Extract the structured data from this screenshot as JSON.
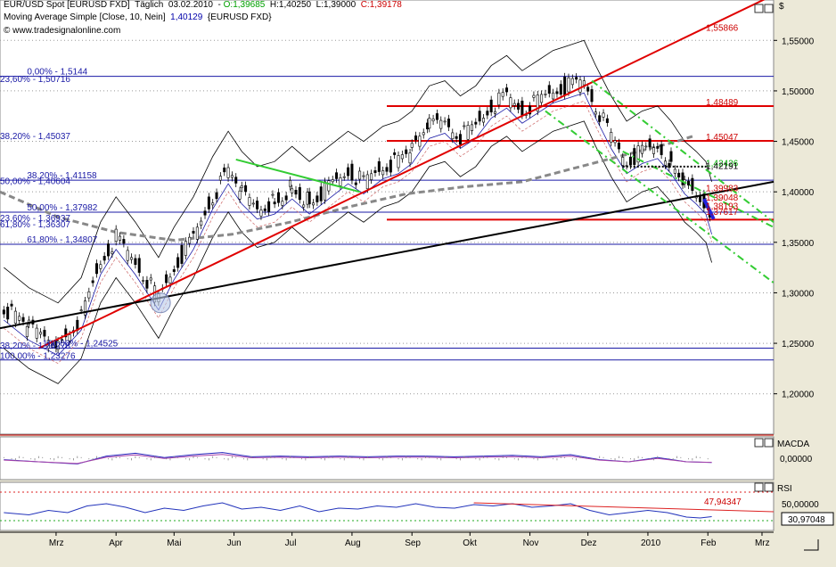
{
  "header": {
    "line1": {
      "instrument": "EUR/USD Spot [EURUSD FXD]",
      "period": "Täglich",
      "date": "03.02.2010",
      "open": "O:1,39685",
      "high": "H:1,40250",
      "low": "L:1,39000",
      "close": "C:1,39178"
    },
    "line2": {
      "indicator": "Moving Average Simple [Close, 10, Nein]",
      "value": "1,40129",
      "symbol": "{EURUSD FXD}"
    },
    "line3": "© www.tradesignalonline.com"
  },
  "chart_data": [
    {
      "type": "candlestick",
      "title": "EUR/USD Spot [EURUSD FXD]",
      "y_axis_label": "$",
      "ylim": [
        1.16,
        1.59
      ],
      "y_ticks": [
        "1,55000",
        "1,50000",
        "1,45000",
        "1,40000",
        "1,35000",
        "1,30000",
        "1,25000",
        "1,20000"
      ],
      "y_tick_values": [
        1.55,
        1.5,
        1.45,
        1.4,
        1.35,
        1.3,
        1.25,
        1.2
      ],
      "x_ticks": [
        "Mrz",
        "Apr",
        "Mai",
        "Jun",
        "Jul",
        "Aug",
        "Sep",
        "Okt",
        "Nov",
        "Dez",
        "2010",
        "Feb",
        "Mrz"
      ],
      "x_tick_days": [
        59,
        90,
        120,
        151,
        181,
        212,
        243,
        273,
        304,
        334,
        365,
        396,
        424
      ],
      "x_range_days": [
        30,
        430
      ],
      "price_path": [
        [
          32,
          1.285
        ],
        [
          45,
          1.265
        ],
        [
          60,
          1.25
        ],
        [
          72,
          1.275
        ],
        [
          82,
          1.33
        ],
        [
          90,
          1.355
        ],
        [
          100,
          1.33
        ],
        [
          112,
          1.295
        ],
        [
          120,
          1.325
        ],
        [
          130,
          1.355
        ],
        [
          140,
          1.395
        ],
        [
          148,
          1.42
        ],
        [
          155,
          1.4
        ],
        [
          163,
          1.385
        ],
        [
          172,
          1.39
        ],
        [
          181,
          1.405
        ],
        [
          190,
          1.39
        ],
        [
          200,
          1.405
        ],
        [
          210,
          1.42
        ],
        [
          218,
          1.41
        ],
        [
          228,
          1.425
        ],
        [
          236,
          1.43
        ],
        [
          243,
          1.44
        ],
        [
          252,
          1.465
        ],
        [
          260,
          1.47
        ],
        [
          268,
          1.455
        ],
        [
          276,
          1.465
        ],
        [
          284,
          1.485
        ],
        [
          292,
          1.495
        ],
        [
          300,
          1.48
        ],
        [
          308,
          1.49
        ],
        [
          316,
          1.5
        ],
        [
          324,
          1.505
        ],
        [
          332,
          1.51
        ],
        [
          338,
          1.485
        ],
        [
          346,
          1.455
        ],
        [
          354,
          1.43
        ],
        [
          362,
          1.44
        ],
        [
          370,
          1.445
        ],
        [
          377,
          1.43
        ],
        [
          384,
          1.41
        ],
        [
          390,
          1.4
        ],
        [
          395,
          1.39
        ],
        [
          398,
          1.37
        ]
      ],
      "price_labels": [
        {
          "text": "1,55866",
          "value": 1.55866,
          "color": "#cc0000"
        },
        {
          "text": "1,48489",
          "value": 1.48489,
          "color": "#cc0000"
        },
        {
          "text": "1,45047",
          "value": 1.45047,
          "color": "#cc0000"
        },
        {
          "text": "1,42426",
          "value": 1.42426,
          "color": "#00aa00"
        },
        {
          "text": "1,42191",
          "value": 1.42191,
          "color": "#000000"
        },
        {
          "text": "1,39983",
          "value": 1.39983,
          "color": "#cc0000"
        },
        {
          "text": "1,39048",
          "value": 1.39048,
          "color": "#cc0000"
        },
        {
          "text": "1,38193",
          "value": 1.38193,
          "color": "#cc0000"
        },
        {
          "text": "1,37617",
          "value": 1.37617,
          "color": "#cc0000"
        }
      ],
      "fib_labels": [
        {
          "text": "0,00% - 1,5144",
          "value": 1.5144,
          "x_day": 44
        },
        {
          "text": "23,60% - 1,50716",
          "value": 1.50716,
          "x_day": 30
        },
        {
          "text": "38,20% - 1,45037",
          "value": 1.45037,
          "x_day": 30
        },
        {
          "text": "38,20% - 1,41158",
          "value": 1.41158,
          "x_day": 44
        },
        {
          "text": "50,00% - 1,40604",
          "value": 1.40604,
          "x_day": 30
        },
        {
          "text": "50,00% - 1,37982",
          "value": 1.37982,
          "x_day": 44
        },
        {
          "text": "23,60% - 1,36937",
          "value": 1.36937,
          "x_day": 30
        },
        {
          "text": "61,80% - 1,36307",
          "value": 1.36307,
          "x_day": 30
        },
        {
          "text": "61,80% - 1,34807",
          "value": 1.34807,
          "x_day": 44
        },
        {
          "text": "100,00% - 1,24525",
          "value": 1.24525,
          "x_day": 52
        },
        {
          "text": "38,20% - 1,24278",
          "value": 1.24278,
          "x_day": 30
        },
        {
          "text": "100,00% - 1,23276",
          "value": 1.23276,
          "x_day": 30
        }
      ],
      "horizontal_lines": [
        1.5144,
        1.48489,
        1.45047,
        1.41158,
        1.37982,
        1.3725,
        1.34807,
        1.24525,
        1.2335
      ],
      "trendlines": [
        {
          "color": "#e00000",
          "from": [
            50,
            1.245
          ],
          "to": [
            430,
            1.595
          ]
        },
        {
          "color": "#000000",
          "from": [
            30,
            1.265
          ],
          "to": [
            430,
            1.41
          ]
        },
        {
          "color": "#33cc33",
          "from": [
            152,
            1.432
          ],
          "to": [
            216,
            1.4
          ]
        },
        {
          "color": "#33cc33",
          "from": [
            336,
            1.51
          ],
          "to": [
            430,
            1.37
          ]
        },
        {
          "color": "#33cc33",
          "from": [
            312,
            1.48
          ],
          "to": [
            430,
            1.31
          ]
        },
        {
          "color": "#33cc33",
          "from": [
            352,
            1.44
          ],
          "to": [
            430,
            1.365
          ]
        }
      ]
    },
    {
      "type": "line",
      "title": "MACDA",
      "y_ticks": [
        "0,00000"
      ],
      "y_tick_values": [
        0
      ],
      "series": [
        {
          "values": [
            [
              32,
              -0.2
            ],
            [
              50,
              -0.5
            ],
            [
              70,
              -0.8
            ],
            [
              85,
              0.3
            ],
            [
              100,
              0.7
            ],
            [
              115,
              0.1
            ],
            [
              130,
              0.5
            ],
            [
              145,
              0.8
            ],
            [
              160,
              0.2
            ],
            [
              175,
              0.3
            ],
            [
              190,
              0.2
            ],
            [
              205,
              0.3
            ],
            [
              220,
              0.2
            ],
            [
              235,
              0.3
            ],
            [
              250,
              0.3
            ],
            [
              265,
              0.2
            ],
            [
              280,
              0.3
            ],
            [
              295,
              0.4
            ],
            [
              310,
              0.2
            ],
            [
              325,
              0.5
            ],
            [
              340,
              -0.2
            ],
            [
              355,
              -0.5
            ],
            [
              370,
              0.1
            ],
            [
              385,
              -0.5
            ],
            [
              398,
              -0.6
            ]
          ]
        }
      ]
    },
    {
      "type": "line",
      "title": "RSI",
      "y_ticks": [
        "50,00000"
      ],
      "y_tick_values": [
        50
      ],
      "ylim": [
        0,
        100
      ],
      "value_label": "30,97048",
      "current_value": 30.97048,
      "resistance_label": "47,94347",
      "series": [
        {
          "values": [
            [
              32,
              40
            ],
            [
              45,
              35
            ],
            [
              55,
              45
            ],
            [
              65,
              40
            ],
            [
              75,
              55
            ],
            [
              85,
              60
            ],
            [
              95,
              52
            ],
            [
              105,
              40
            ],
            [
              115,
              50
            ],
            [
              125,
              45
            ],
            [
              135,
              55
            ],
            [
              145,
              62
            ],
            [
              155,
              48
            ],
            [
              165,
              52
            ],
            [
              175,
              45
            ],
            [
              185,
              55
            ],
            [
              195,
              42
            ],
            [
              205,
              50
            ],
            [
              215,
              48
            ],
            [
              225,
              55
            ],
            [
              235,
              52
            ],
            [
              245,
              60
            ],
            [
              255,
              52
            ],
            [
              265,
              50
            ],
            [
              275,
              58
            ],
            [
              285,
              55
            ],
            [
              295,
              60
            ],
            [
              305,
              52
            ],
            [
              315,
              55
            ],
            [
              325,
              60
            ],
            [
              335,
              45
            ],
            [
              345,
              35
            ],
            [
              355,
              40
            ],
            [
              365,
              45
            ],
            [
              375,
              40
            ],
            [
              385,
              30
            ],
            [
              392,
              28
            ],
            [
              398,
              31
            ]
          ]
        }
      ]
    }
  ]
}
